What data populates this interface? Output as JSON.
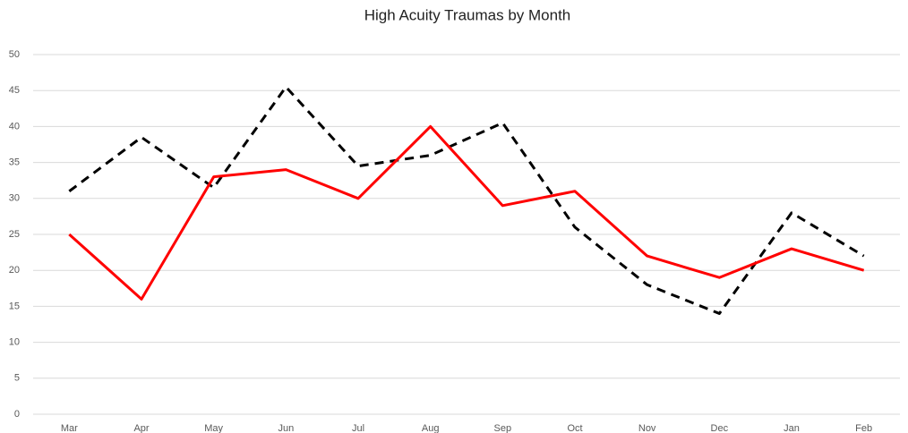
{
  "chart_data": {
    "type": "line",
    "title": "High Acuity Traumas by Month",
    "categories": [
      "Mar",
      "Apr",
      "May",
      "Jun",
      "Jul",
      "Aug",
      "Sep",
      "Oct",
      "Nov",
      "Dec",
      "Jan",
      "Feb"
    ],
    "series": [
      {
        "color": "#000000",
        "dashed": true,
        "values": [
          31,
          38.5,
          31.5,
          45.5,
          34.5,
          36,
          40.5,
          26,
          18,
          14,
          28,
          22
        ]
      },
      {
        "color": "#ff0000",
        "dashed": false,
        "values": [
          25,
          16,
          33,
          34,
          30,
          40,
          29,
          31,
          22,
          19,
          23,
          20
        ]
      }
    ],
    "ylim": [
      0,
      50
    ],
    "yticks": [
      0,
      5,
      10,
      15,
      20,
      25,
      30,
      35,
      40,
      45,
      50
    ],
    "grid": true
  }
}
